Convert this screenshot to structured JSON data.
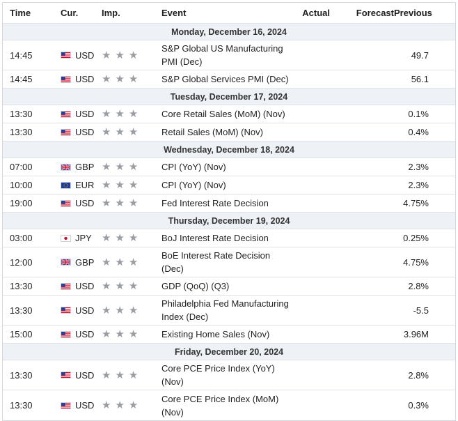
{
  "headers": {
    "time": "Time",
    "currency": "Cur.",
    "importance": "Imp.",
    "event": "Event",
    "actual": "Actual",
    "forecast": "Forecast",
    "previous": "Previous"
  },
  "colors": {
    "day_row_bg": "#eef1f5",
    "border": "#dfe2e6",
    "star": "#9a9ea4"
  },
  "star_glyph": "★",
  "groups": [
    {
      "day": "Monday, December 16, 2024",
      "events": [
        {
          "time": "14:45",
          "flag": "us-flag-icon",
          "currency": "USD",
          "importance": 3,
          "event_line1": "S&P Global US Manufacturing",
          "event_line2": "PMI (Dec)",
          "actual": "",
          "forecast": "",
          "previous": "49.7"
        },
        {
          "time": "14:45",
          "flag": "us-flag-icon",
          "currency": "USD",
          "importance": 3,
          "event_line1": "S&P Global Services PMI (Dec)",
          "event_line2": "",
          "actual": "",
          "forecast": "",
          "previous": "56.1"
        }
      ]
    },
    {
      "day": "Tuesday, December 17, 2024",
      "events": [
        {
          "time": "13:30",
          "flag": "us-flag-icon",
          "currency": "USD",
          "importance": 3,
          "event_line1": "Core Retail Sales (MoM) (Nov)",
          "event_line2": "",
          "actual": "",
          "forecast": "",
          "previous": "0.1%"
        },
        {
          "time": "13:30",
          "flag": "us-flag-icon",
          "currency": "USD",
          "importance": 3,
          "event_line1": "Retail Sales (MoM) (Nov)",
          "event_line2": "",
          "actual": "",
          "forecast": "",
          "previous": "0.4%"
        }
      ]
    },
    {
      "day": "Wednesday, December 18, 2024",
      "events": [
        {
          "time": "07:00",
          "flag": "uk-flag-icon",
          "currency": "GBP",
          "importance": 3,
          "event_line1": "CPI (YoY) (Nov)",
          "event_line2": "",
          "actual": "",
          "forecast": "",
          "previous": "2.3%"
        },
        {
          "time": "10:00",
          "flag": "eu-flag-icon",
          "currency": "EUR",
          "importance": 3,
          "event_line1": "CPI (YoY) (Nov)",
          "event_line2": "",
          "actual": "",
          "forecast": "",
          "previous": "2.3%"
        },
        {
          "time": "19:00",
          "flag": "us-flag-icon",
          "currency": "USD",
          "importance": 3,
          "event_line1": "Fed Interest Rate Decision",
          "event_line2": "",
          "actual": "",
          "forecast": "",
          "previous": "4.75%"
        }
      ]
    },
    {
      "day": "Thursday, December 19, 2024",
      "events": [
        {
          "time": "03:00",
          "flag": "jp-flag-icon",
          "currency": "JPY",
          "importance": 3,
          "event_line1": "BoJ Interest Rate Decision",
          "event_line2": "",
          "actual": "",
          "forecast": "",
          "previous": "0.25%"
        },
        {
          "time": "12:00",
          "flag": "uk-flag-icon",
          "currency": "GBP",
          "importance": 3,
          "event_line1": "BoE Interest Rate Decision",
          "event_line2": "(Dec)",
          "actual": "",
          "forecast": "",
          "previous": "4.75%"
        },
        {
          "time": "13:30",
          "flag": "us-flag-icon",
          "currency": "USD",
          "importance": 3,
          "event_line1": "GDP (QoQ) (Q3)",
          "event_line2": "",
          "actual": "",
          "forecast": "",
          "previous": "2.8%"
        },
        {
          "time": "13:30",
          "flag": "us-flag-icon",
          "currency": "USD",
          "importance": 3,
          "event_line1": "Philadelphia Fed Manufacturing",
          "event_line2": "Index (Dec)",
          "actual": "",
          "forecast": "",
          "previous": "-5.5"
        },
        {
          "time": "15:00",
          "flag": "us-flag-icon",
          "currency": "USD",
          "importance": 3,
          "event_line1": "Existing Home Sales (Nov)",
          "event_line2": "",
          "actual": "",
          "forecast": "",
          "previous": "3.96M"
        }
      ]
    },
    {
      "day": "Friday, December 20, 2024",
      "events": [
        {
          "time": "13:30",
          "flag": "us-flag-icon",
          "currency": "USD",
          "importance": 3,
          "event_line1": "Core PCE Price Index (YoY)",
          "event_line2": "(Nov)",
          "actual": "",
          "forecast": "",
          "previous": "2.8%"
        },
        {
          "time": "13:30",
          "flag": "us-flag-icon",
          "currency": "USD",
          "importance": 3,
          "event_line1": "Core PCE Price Index (MoM)",
          "event_line2": "(Nov)",
          "actual": "",
          "forecast": "",
          "previous": "0.3%"
        }
      ]
    }
  ]
}
